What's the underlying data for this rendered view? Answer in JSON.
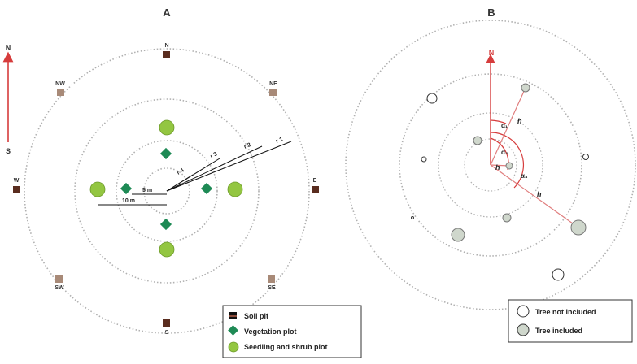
{
  "panel_a": {
    "label": "A",
    "north_arrow": {
      "top": "N",
      "bottom": "S"
    },
    "directions": {
      "n": "N",
      "ne": "NE",
      "e": "E",
      "se": "SE",
      "s": "S",
      "sw": "SW",
      "w": "W",
      "nw": "NW"
    },
    "radius_labels": {
      "r4": "r 4",
      "r3": "r 3",
      "r2": "r 2",
      "r1": "r 1"
    },
    "scale_5m": "5 m",
    "scale_10m": "10 m",
    "legend": {
      "soil_pit": "Soil pit",
      "vegetation_plot": "Vegetation plot",
      "seedling_plot": "Seedling and shrub plot"
    }
  },
  "panel_b": {
    "label": "B",
    "north": "N",
    "annotations": {
      "alpha1": "α₁",
      "alpha2": "α₂",
      "alpha3": "α₃",
      "h1": "h",
      "h2": "h",
      "h3": "h"
    },
    "legend": {
      "not_included": "Tree not included",
      "included": "Tree included"
    }
  },
  "colors": {
    "soil_pit": "#5a2d1f",
    "soil_pit_intercardinal": "#a88a78",
    "vegetation_plot": "#1e8a55",
    "seedling_plot": "#93c641",
    "north_red": "#d63c3c",
    "annotation_red": "#e07e7e",
    "tree_included": "#cfd7cc",
    "circle_dot": "#b0b0b0"
  }
}
